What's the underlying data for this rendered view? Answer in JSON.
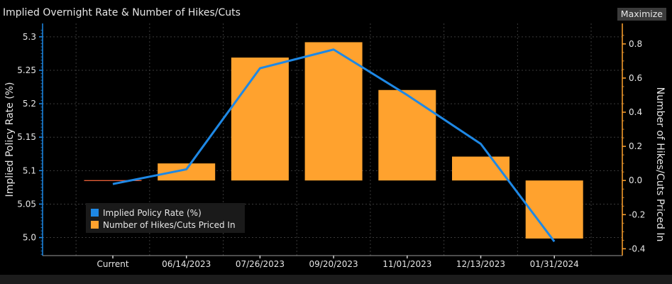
{
  "window": {
    "title": "Implied Overnight Rate & Number of Hikes/Cuts",
    "maximize_label": "Maximize"
  },
  "colors": {
    "background": "#000000",
    "line": "#1e88e5",
    "bar": "#ffa22e",
    "axis_left": "#1e88e5",
    "axis_right": "#ffa22e",
    "grid": "#3a3a3a",
    "text": "#e6e6e6"
  },
  "chart_data": {
    "type": "bar",
    "title": "Implied Overnight Rate & Number of Hikes/Cuts",
    "categories": [
      "Current",
      "06/14/2023",
      "07/26/2023",
      "09/20/2023",
      "11/01/2023",
      "12/13/2023",
      "01/31/2024"
    ],
    "y_left": {
      "label": "Implied Policy Rate (%)",
      "range": [
        4.973,
        5.32
      ],
      "ticks": [
        "5.0",
        "5.05",
        "5.1",
        "5.15",
        "5.2",
        "5.25",
        "5.3"
      ],
      "tick_values": [
        5.0,
        5.05,
        5.1,
        5.15,
        5.2,
        5.25,
        5.3
      ]
    },
    "y_right": {
      "label": "Number of Hikes/Cuts Priced In",
      "range": [
        -0.44,
        0.92
      ],
      "ticks": [
        "-0.4",
        "-0.2",
        "0.0",
        "0.2",
        "0.4",
        "0.6",
        "0.8"
      ],
      "tick_values": [
        -0.4,
        -0.2,
        0.0,
        0.2,
        0.4,
        0.6,
        0.8
      ]
    },
    "series": [
      {
        "name": "Implied Policy Rate (%)",
        "type": "line",
        "axis": "left",
        "color": "#1e88e5",
        "values": [
          5.08,
          5.102,
          5.253,
          5.281,
          5.213,
          5.14,
          4.994
        ]
      },
      {
        "name": "Number of Hikes/Cuts Priced In",
        "type": "bar",
        "axis": "right",
        "color": "#ffa22e",
        "values": [
          0.0,
          0.1,
          0.72,
          0.81,
          0.53,
          0.14,
          -0.34
        ]
      }
    ],
    "grid": true,
    "legend": {
      "placement": "bottom-left",
      "entries": [
        "Implied Policy Rate (%)",
        "Number of Hikes/Cuts Priced In"
      ]
    }
  }
}
